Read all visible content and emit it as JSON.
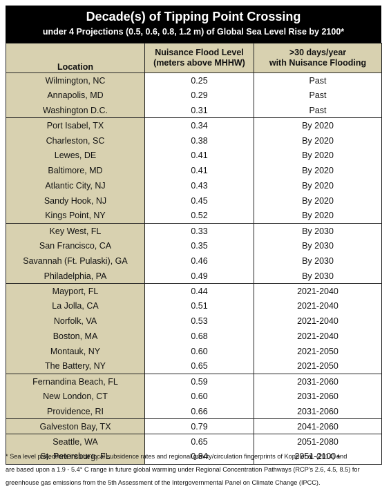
{
  "title": "Decade(s) of Tipping Point Crossing",
  "subtitle": "under 4 Projections (0.5, 0.6, 0.8, 1.2 m) of Global Sea Level Rise by 2100*",
  "columns": {
    "location": "Location",
    "level_line1": "Nuisance Flood Level",
    "level_line2": "(meters above MHHW)",
    "days_line1": ">30 days/year",
    "days_line2": "with Nuisance Flooding"
  },
  "groups": [
    {
      "rows": [
        {
          "location": "Wilmington, NC",
          "level": "0.25",
          "decade": "Past"
        },
        {
          "location": "Annapolis, MD",
          "level": "0.29",
          "decade": "Past"
        },
        {
          "location": "Washington D.C.",
          "level": "0.31",
          "decade": "Past"
        }
      ]
    },
    {
      "rows": [
        {
          "location": "Port Isabel, TX",
          "level": "0.34",
          "decade": "By 2020"
        },
        {
          "location": "Charleston, SC",
          "level": "0.38",
          "decade": "By 2020"
        },
        {
          "location": "Lewes, DE",
          "level": "0.41",
          "decade": "By 2020"
        },
        {
          "location": "Baltimore, MD",
          "level": "0.41",
          "decade": "By 2020"
        },
        {
          "location": "Atlantic City, NJ",
          "level": "0.43",
          "decade": "By 2020"
        },
        {
          "location": "Sandy Hook, NJ",
          "level": "0.45",
          "decade": "By 2020"
        },
        {
          "location": "Kings Point, NY",
          "level": "0.52",
          "decade": "By 2020"
        }
      ]
    },
    {
      "rows": [
        {
          "location": "Key West, FL",
          "level": "0.33",
          "decade": "By 2030"
        },
        {
          "location": "San Francisco, CA",
          "level": "0.35",
          "decade": "By 2030"
        },
        {
          "location": "Savannah (Ft. Pulaski), GA",
          "level": "0.46",
          "decade": "By 2030"
        },
        {
          "location": "Philadelphia, PA",
          "level": "0.49",
          "decade": "By 2030"
        }
      ]
    },
    {
      "rows": [
        {
          "location": "Mayport, FL",
          "level": "0.44",
          "decade": "2021-2040"
        },
        {
          "location": "La Jolla, CA",
          "level": "0.51",
          "decade": "2021-2040"
        },
        {
          "location": "Norfolk, VA",
          "level": "0.53",
          "decade": "2021-2040"
        },
        {
          "location": "Boston, MA",
          "level": "0.68",
          "decade": "2021-2040"
        },
        {
          "location": "Montauk, NY",
          "level": "0.60",
          "decade": "2021-2050"
        },
        {
          "location": "The Battery, NY",
          "level": "0.65",
          "decade": "2021-2050"
        }
      ]
    },
    {
      "rows": [
        {
          "location": "Fernandina Beach, FL",
          "level": "0.59",
          "decade": "2031-2060"
        },
        {
          "location": "New London, CT",
          "level": "0.60",
          "decade": "2031-2060"
        },
        {
          "location": "Providence, RI",
          "level": "0.66",
          "decade": "2031-2060"
        }
      ]
    },
    {
      "rows": [
        {
          "location": "Galveston Bay, TX",
          "level": "0.79",
          "decade": "2041-2060"
        }
      ]
    },
    {
      "rows": [
        {
          "location": "Seattle, WA",
          "level": "0.65",
          "decade": "2051-2080"
        },
        {
          "location": "St. Petersburg, FL",
          "level": "0.84",
          "decade": "2051-2100+"
        }
      ]
    }
  ],
  "footnote": [
    "* Sea level projections include local subsidence rates and regional gravity/circulation fingerprints of Kopp et al. (2014) and",
    "are based upon a 1.9 - 5.4° C range in future global warming under Regional Concentration Pathways (RCP's 2.6, 4.5, 8.5) for",
    "greenhouse gas emissions from the 5th Assessment of the Intergovernmental Panel on Climate Change (IPCC)."
  ]
}
